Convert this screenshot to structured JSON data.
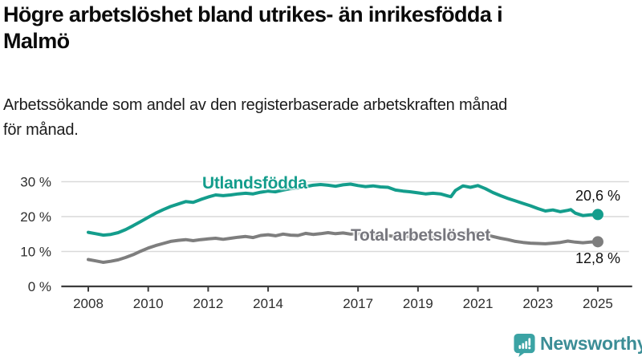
{
  "header": {
    "title_lines": [
      "Högre arbetslöshet bland utrikes- än inrikesfödda i",
      "Malmö"
    ],
    "subtitle_lines": [
      "Arbetssökande som andel av den registerbaserade arbetskraften månad",
      "för månad."
    ]
  },
  "chart_data": {
    "type": "line",
    "title": "Högre arbetslöshet bland utrikes- än inrikesfödda i Malmö",
    "subtitle": "Arbetssökande som andel av den registerbaserade arbetskraften månad för månad.",
    "unit": "%",
    "grid": true,
    "legend_position": "inline-labels",
    "xlim": [
      2007.1,
      2026.2
    ],
    "ylim": [
      0,
      32
    ],
    "x_ticks": [
      2008,
      2010,
      2012,
      2014,
      2017,
      2019,
      2021,
      2023,
      2025
    ],
    "y_ticks": [
      0,
      10,
      20,
      30
    ],
    "y_tick_suffix": " %",
    "series": [
      {
        "name": "Utlandsfödda",
        "color": "#149d8c",
        "end_label": "20,6 %",
        "end_value": 20.6,
        "points": [
          [
            2008.0,
            15.5
          ],
          [
            2008.25,
            15.1
          ],
          [
            2008.5,
            14.7
          ],
          [
            2008.75,
            14.9
          ],
          [
            2009.0,
            15.4
          ],
          [
            2009.25,
            16.3
          ],
          [
            2009.5,
            17.4
          ],
          [
            2009.75,
            18.6
          ],
          [
            2010.0,
            19.8
          ],
          [
            2010.25,
            21.0
          ],
          [
            2010.5,
            22.0
          ],
          [
            2010.75,
            22.9
          ],
          [
            2011.0,
            23.6
          ],
          [
            2011.25,
            24.3
          ],
          [
            2011.5,
            24.1
          ],
          [
            2011.75,
            24.9
          ],
          [
            2012.0,
            25.6
          ],
          [
            2012.25,
            26.2
          ],
          [
            2012.5,
            26.0
          ],
          [
            2012.75,
            26.2
          ],
          [
            2013.0,
            26.5
          ],
          [
            2013.25,
            26.7
          ],
          [
            2013.5,
            26.5
          ],
          [
            2013.75,
            27.0
          ],
          [
            2014.0,
            27.3
          ],
          [
            2014.25,
            27.1
          ],
          [
            2014.5,
            27.6
          ],
          [
            2014.75,
            28.0
          ],
          [
            2015.0,
            28.2
          ],
          [
            2015.25,
            28.6
          ],
          [
            2015.5,
            29.0
          ],
          [
            2015.75,
            29.2
          ],
          [
            2016.0,
            29.0
          ],
          [
            2016.25,
            28.7
          ],
          [
            2016.5,
            29.1
          ],
          [
            2016.75,
            29.3
          ],
          [
            2017.0,
            28.9
          ],
          [
            2017.25,
            28.6
          ],
          [
            2017.5,
            28.8
          ],
          [
            2017.75,
            28.5
          ],
          [
            2018.0,
            28.4
          ],
          [
            2018.25,
            27.6
          ],
          [
            2018.5,
            27.3
          ],
          [
            2018.75,
            27.1
          ],
          [
            2019.0,
            26.8
          ],
          [
            2019.25,
            26.5
          ],
          [
            2019.5,
            26.7
          ],
          [
            2019.75,
            26.5
          ],
          [
            2020.0,
            25.9
          ],
          [
            2020.1,
            25.7
          ],
          [
            2020.25,
            27.5
          ],
          [
            2020.5,
            28.8
          ],
          [
            2020.75,
            28.4
          ],
          [
            2021.0,
            28.9
          ],
          [
            2021.25,
            28.0
          ],
          [
            2021.5,
            26.9
          ],
          [
            2021.75,
            26.0
          ],
          [
            2022.0,
            25.2
          ],
          [
            2022.25,
            24.5
          ],
          [
            2022.5,
            23.8
          ],
          [
            2022.75,
            23.1
          ],
          [
            2023.0,
            22.3
          ],
          [
            2023.25,
            21.6
          ],
          [
            2023.5,
            21.9
          ],
          [
            2023.75,
            21.4
          ],
          [
            2024.0,
            21.8
          ],
          [
            2024.1,
            22.0
          ],
          [
            2024.25,
            21.0
          ],
          [
            2024.5,
            20.3
          ],
          [
            2024.75,
            20.5
          ],
          [
            2025.0,
            20.6
          ]
        ]
      },
      {
        "name": "Total arbetslöshet",
        "color": "#7e7e7e",
        "end_label": "12,8 %",
        "end_value": 12.8,
        "points": [
          [
            2008.0,
            7.7
          ],
          [
            2008.25,
            7.3
          ],
          [
            2008.5,
            6.9
          ],
          [
            2008.75,
            7.2
          ],
          [
            2009.0,
            7.6
          ],
          [
            2009.25,
            8.3
          ],
          [
            2009.5,
            9.1
          ],
          [
            2009.75,
            10.1
          ],
          [
            2010.0,
            11.0
          ],
          [
            2010.25,
            11.7
          ],
          [
            2010.5,
            12.3
          ],
          [
            2010.75,
            12.9
          ],
          [
            2011.0,
            13.2
          ],
          [
            2011.25,
            13.4
          ],
          [
            2011.5,
            13.1
          ],
          [
            2011.75,
            13.4
          ],
          [
            2012.0,
            13.6
          ],
          [
            2012.25,
            13.8
          ],
          [
            2012.5,
            13.5
          ],
          [
            2012.75,
            13.8
          ],
          [
            2013.0,
            14.1
          ],
          [
            2013.25,
            14.3
          ],
          [
            2013.5,
            14.0
          ],
          [
            2013.75,
            14.6
          ],
          [
            2014.0,
            14.8
          ],
          [
            2014.25,
            14.5
          ],
          [
            2014.5,
            15.0
          ],
          [
            2014.75,
            14.7
          ],
          [
            2015.0,
            14.6
          ],
          [
            2015.25,
            15.2
          ],
          [
            2015.5,
            14.9
          ],
          [
            2015.75,
            15.1
          ],
          [
            2016.0,
            15.4
          ],
          [
            2016.25,
            15.1
          ],
          [
            2016.5,
            15.3
          ],
          [
            2016.75,
            15.0
          ],
          [
            2017.0,
            15.1
          ],
          [
            2017.25,
            14.8
          ],
          [
            2017.5,
            14.9
          ],
          [
            2017.75,
            14.6
          ],
          [
            2018.0,
            14.5
          ],
          [
            2018.25,
            14.3
          ],
          [
            2018.5,
            14.4
          ],
          [
            2018.75,
            14.2
          ],
          [
            2019.0,
            14.1
          ],
          [
            2019.25,
            14.0
          ],
          [
            2019.5,
            14.1
          ],
          [
            2019.75,
            13.9
          ],
          [
            2020.0,
            14.0
          ],
          [
            2020.25,
            14.9
          ],
          [
            2020.5,
            15.4
          ],
          [
            2020.75,
            15.2
          ],
          [
            2021.0,
            15.3
          ],
          [
            2021.25,
            14.8
          ],
          [
            2021.5,
            14.3
          ],
          [
            2021.75,
            13.8
          ],
          [
            2022.0,
            13.4
          ],
          [
            2022.25,
            12.9
          ],
          [
            2022.5,
            12.6
          ],
          [
            2022.75,
            12.4
          ],
          [
            2023.0,
            12.3
          ],
          [
            2023.25,
            12.2
          ],
          [
            2023.5,
            12.4
          ],
          [
            2023.75,
            12.6
          ],
          [
            2024.0,
            13.0
          ],
          [
            2024.25,
            12.7
          ],
          [
            2024.5,
            12.5
          ],
          [
            2024.75,
            12.7
          ],
          [
            2025.0,
            12.8
          ]
        ]
      }
    ]
  },
  "colors": {
    "accent_teal": "#149d8c",
    "line_gray": "#7e7e7e",
    "gray_label": "#77777e",
    "axis": "#3c3c3c",
    "gridline": "#d9d9d9",
    "tick_text": "#2e2e2e",
    "value_text": "#111111"
  },
  "branding": {
    "logo_text": "Newsworthy",
    "logo_icon": "newsworthy-barchart-speech-bubble-icon",
    "icon_color": "#3ba3a4",
    "text_color": "#3b8d96"
  }
}
